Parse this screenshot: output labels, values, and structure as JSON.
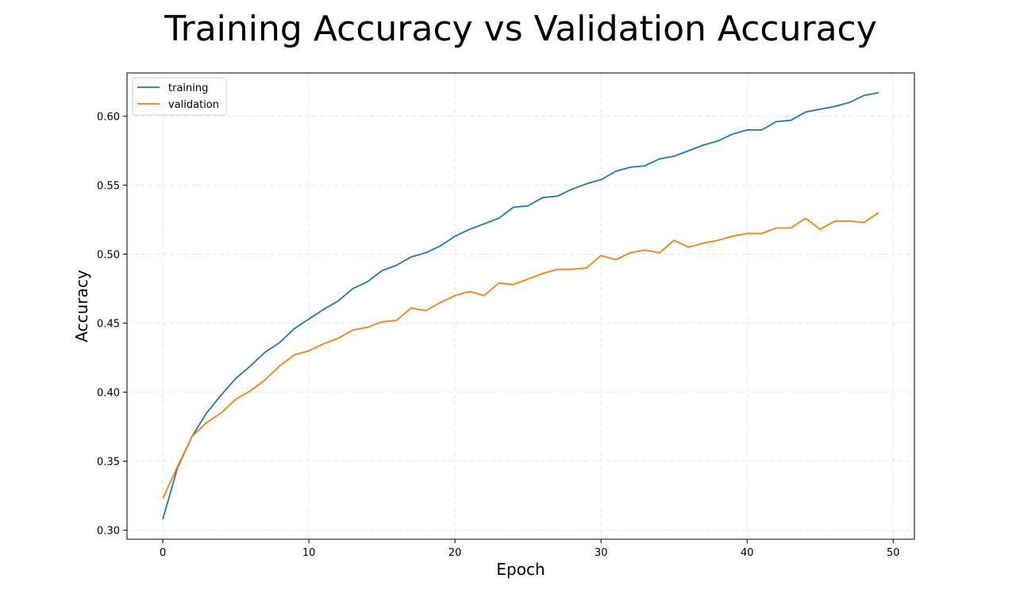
{
  "chart_data": {
    "type": "line",
    "title": "Training Accuracy vs Validation Accuracy",
    "xlabel": "Epoch",
    "ylabel": "Accuracy",
    "xlim": [
      -2.45,
      51.45
    ],
    "ylim": [
      0.2935,
      0.6313
    ],
    "xticks": [
      0,
      10,
      20,
      30,
      40,
      50
    ],
    "yticks": [
      0.3,
      0.35,
      0.4,
      0.45,
      0.5,
      0.55,
      0.6
    ],
    "grid": true,
    "legend_position": "upper-left",
    "x": [
      0,
      1,
      2,
      3,
      4,
      5,
      6,
      7,
      8,
      9,
      10,
      11,
      12,
      13,
      14,
      15,
      16,
      17,
      18,
      19,
      20,
      21,
      22,
      23,
      24,
      25,
      26,
      27,
      28,
      29,
      30,
      31,
      32,
      33,
      34,
      35,
      36,
      37,
      38,
      39,
      40,
      41,
      42,
      43,
      44,
      45,
      46,
      47,
      48,
      49
    ],
    "series": [
      {
        "name": "training",
        "color": "#1f77b4",
        "values": [
          0.308,
          0.345,
          0.368,
          0.385,
          0.398,
          0.41,
          0.419,
          0.429,
          0.436,
          0.446,
          0.453,
          0.46,
          0.466,
          0.475,
          0.48,
          0.488,
          0.492,
          0.498,
          0.501,
          0.506,
          0.513,
          0.518,
          0.522,
          0.526,
          0.534,
          0.535,
          0.541,
          0.542,
          0.547,
          0.551,
          0.554,
          0.56,
          0.563,
          0.564,
          0.569,
          0.571,
          0.575,
          0.579,
          0.582,
          0.587,
          0.59,
          0.59,
          0.596,
          0.597,
          0.603,
          0.605,
          0.607,
          0.61,
          0.615,
          0.617
        ]
      },
      {
        "name": "validation",
        "color": "#ff7f0e",
        "values": [
          0.323,
          0.346,
          0.368,
          0.378,
          0.385,
          0.395,
          0.401,
          0.409,
          0.419,
          0.427,
          0.43,
          0.435,
          0.439,
          0.445,
          0.447,
          0.451,
          0.452,
          0.461,
          0.459,
          0.465,
          0.47,
          0.473,
          0.47,
          0.479,
          0.478,
          0.482,
          0.486,
          0.489,
          0.489,
          0.49,
          0.499,
          0.496,
          0.501,
          0.503,
          0.501,
          0.51,
          0.505,
          0.508,
          0.51,
          0.513,
          0.515,
          0.515,
          0.519,
          0.519,
          0.526,
          0.518,
          0.524,
          0.524,
          0.523,
          0.53
        ]
      }
    ]
  }
}
